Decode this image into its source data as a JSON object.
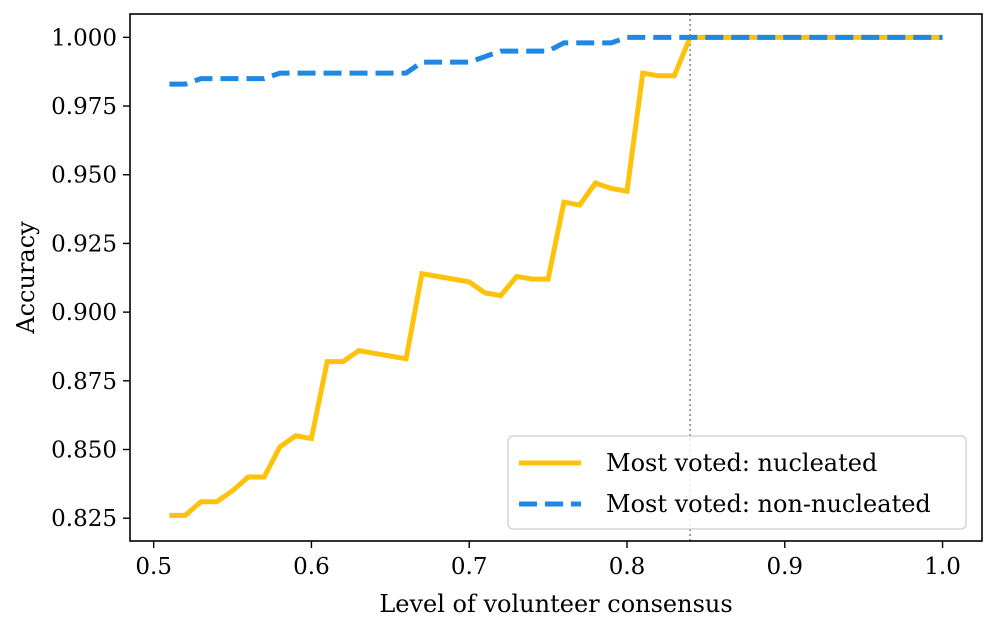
{
  "chart_data": {
    "type": "line",
    "xlabel": "Level of volunteer consensus",
    "ylabel": "Accuracy",
    "xlim": [
      0.485,
      1.025
    ],
    "ylim": [
      0.8167,
      1.0085
    ],
    "xticks": [
      0.5,
      0.6,
      0.7,
      0.8,
      0.9,
      1.0
    ],
    "xtick_labels": [
      "0.5",
      "0.6",
      "0.7",
      "0.8",
      "0.9",
      "1.0"
    ],
    "yticks": [
      0.825,
      0.85,
      0.875,
      0.9,
      0.925,
      0.95,
      0.975,
      1.0
    ],
    "ytick_labels": [
      "0.825",
      "0.850",
      "0.875",
      "0.900",
      "0.925",
      "0.950",
      "0.975",
      "1.000"
    ],
    "grid": false,
    "legend_position": "lower-right",
    "reference_line": {
      "orientation": "vertical",
      "x": 0.84,
      "style": "dotted",
      "color": "#888888"
    },
    "series": [
      {
        "name": "Most voted: nucleated",
        "color": "#FFC20A",
        "style": "solid",
        "x": [
          0.51,
          0.52,
          0.53,
          0.54,
          0.55,
          0.56,
          0.57,
          0.58,
          0.59,
          0.6,
          0.61,
          0.62,
          0.63,
          0.64,
          0.65,
          0.66,
          0.67,
          0.68,
          0.69,
          0.7,
          0.71,
          0.72,
          0.73,
          0.74,
          0.75,
          0.76,
          0.77,
          0.78,
          0.79,
          0.8,
          0.81,
          0.82,
          0.83,
          0.84,
          0.85,
          0.86,
          0.87,
          0.88,
          0.89,
          0.9,
          0.91,
          0.92,
          0.93,
          0.94,
          0.95,
          0.96,
          0.97,
          0.98,
          0.99,
          1.0
        ],
        "values": [
          0.826,
          0.826,
          0.831,
          0.831,
          0.835,
          0.84,
          0.84,
          0.851,
          0.855,
          0.854,
          0.882,
          0.882,
          0.886,
          0.885,
          0.884,
          0.883,
          0.914,
          0.913,
          0.912,
          0.911,
          0.907,
          0.906,
          0.913,
          0.912,
          0.912,
          0.94,
          0.939,
          0.947,
          0.945,
          0.944,
          0.987,
          0.986,
          0.986,
          1.0,
          1.0,
          1.0,
          1.0,
          1.0,
          1.0,
          1.0,
          1.0,
          1.0,
          1.0,
          1.0,
          1.0,
          1.0,
          1.0,
          1.0,
          1.0,
          1.0
        ]
      },
      {
        "name": "Most voted: non-nucleated",
        "color": "#1E88E5",
        "style": "dashed",
        "x": [
          0.51,
          0.52,
          0.53,
          0.54,
          0.55,
          0.56,
          0.57,
          0.58,
          0.59,
          0.6,
          0.61,
          0.62,
          0.63,
          0.64,
          0.65,
          0.66,
          0.67,
          0.68,
          0.69,
          0.7,
          0.71,
          0.72,
          0.73,
          0.74,
          0.75,
          0.76,
          0.77,
          0.78,
          0.79,
          0.8,
          0.81,
          0.82,
          0.83,
          0.84,
          0.85,
          0.86,
          0.87,
          0.88,
          0.89,
          0.9,
          0.91,
          0.92,
          0.93,
          0.94,
          0.95,
          0.96,
          0.97,
          0.98,
          0.99,
          1.0
        ],
        "values": [
          0.983,
          0.983,
          0.985,
          0.985,
          0.985,
          0.985,
          0.985,
          0.987,
          0.987,
          0.987,
          0.987,
          0.987,
          0.987,
          0.987,
          0.987,
          0.987,
          0.991,
          0.991,
          0.991,
          0.991,
          0.993,
          0.995,
          0.995,
          0.995,
          0.995,
          0.998,
          0.998,
          0.998,
          0.998,
          1.0,
          1.0,
          1.0,
          1.0,
          1.0,
          1.0,
          1.0,
          1.0,
          1.0,
          1.0,
          1.0,
          1.0,
          1.0,
          1.0,
          1.0,
          1.0,
          1.0,
          1.0,
          1.0,
          1.0,
          1.0
        ]
      }
    ]
  }
}
